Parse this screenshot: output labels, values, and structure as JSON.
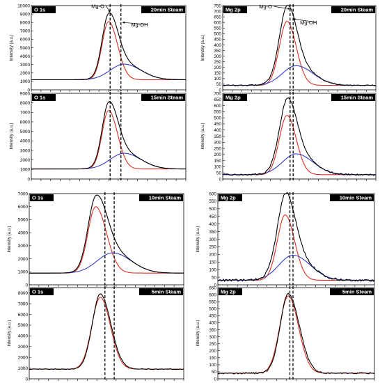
{
  "chart_data": [
    {
      "type": "line",
      "element": "O 1s",
      "condition": "20min Steam",
      "ylabel": "Intensity (a.u.)",
      "ylim": [
        0,
        10000
      ],
      "yticks": [
        0,
        1000,
        2000,
        3000,
        4000,
        5000,
        6000,
        7000,
        8000,
        9000,
        10000
      ],
      "xlim": [
        0,
        100
      ],
      "baseline": 1200,
      "dashed_x": [
        51,
        58
      ],
      "annotations": [
        {
          "label": "Mg-O",
          "target": [
            51,
            9200
          ],
          "text_pos": [
            43,
            9800
          ]
        },
        {
          "label": "Mg-OH",
          "target": [
            59,
            8000
          ],
          "text_pos": [
            70,
            7600
          ]
        }
      ],
      "series": [
        {
          "color": "#d83020",
          "peak_x": 50,
          "peak_y": 8100,
          "w_left": 4.2,
          "w_right": 5.8,
          "noise": 0
        },
        {
          "color": "#3040c8",
          "peak_x": 60,
          "peak_y": 3050,
          "w_left": 9,
          "w_right": 11,
          "noise": 0
        },
        {
          "color": "#000000",
          "sum_of": [
            0,
            1
          ],
          "noise": 0
        }
      ]
    },
    {
      "type": "line",
      "element": "Mg 2p",
      "condition": "20min Steam",
      "ylabel": "Intensity (a.u.)",
      "ylim": [
        0,
        750
      ],
      "yticks": [
        0,
        50,
        100,
        150,
        200,
        250,
        300,
        350,
        400,
        450,
        500,
        550,
        600,
        650,
        700,
        750
      ],
      "xlim": [
        0,
        100
      ],
      "baseline": 40,
      "dashed_x": [
        44,
        46
      ],
      "annotations": [
        {
          "label": "Mg-O",
          "target": [
            44,
            720
          ],
          "text_pos": [
            28,
            730
          ]
        },
        {
          "label": "Mg-OH",
          "target": [
            46,
            630
          ],
          "text_pos": [
            56,
            590
          ]
        }
      ],
      "series": [
        {
          "color": "#d83020",
          "peak_x": 42,
          "peak_y": 610,
          "w_left": 5,
          "w_right": 6,
          "noise": 0
        },
        {
          "color": "#3040c8",
          "peak_x": 48,
          "peak_y": 215,
          "w_left": 9,
          "w_right": 11,
          "noise": 0
        },
        {
          "color": "#000000",
          "sum_of": [
            0,
            1
          ],
          "noise": 5
        }
      ]
    },
    {
      "type": "line",
      "element": "O 1s",
      "condition": "15min Steam",
      "ylabel": "Intensity (a.u.)",
      "ylim": [
        0,
        9000
      ],
      "yticks": [
        0,
        1000,
        2000,
        3000,
        4000,
        5000,
        6000,
        7000,
        8000,
        9000
      ],
      "xlim": [
        0,
        100
      ],
      "baseline": 1050,
      "dashed_x": [
        51,
        58
      ],
      "annotations": [],
      "series": [
        {
          "color": "#d83020",
          "peak_x": 50,
          "peak_y": 7200,
          "w_left": 4.2,
          "w_right": 5.8,
          "noise": 0
        },
        {
          "color": "#3040c8",
          "peak_x": 60,
          "peak_y": 2700,
          "w_left": 9,
          "w_right": 11,
          "noise": 0
        },
        {
          "color": "#000000",
          "sum_of": [
            0,
            1
          ],
          "noise": 0
        }
      ]
    },
    {
      "type": "line",
      "element": "Mg 2p",
      "condition": "15min Steam",
      "ylabel": "Intensity (a.u.)",
      "ylim": [
        0,
        700
      ],
      "yticks": [
        0,
        50,
        100,
        150,
        200,
        250,
        300,
        350,
        400,
        450,
        500,
        550,
        600,
        650,
        700
      ],
      "xlim": [
        0,
        100
      ],
      "baseline": 35,
      "dashed_x": [
        44,
        46
      ],
      "annotations": [],
      "series": [
        {
          "color": "#d83020",
          "peak_x": 42,
          "peak_y": 520,
          "w_left": 5,
          "w_right": 6,
          "noise": 0
        },
        {
          "color": "#3040c8",
          "peak_x": 48,
          "peak_y": 205,
          "w_left": 9,
          "w_right": 11,
          "noise": 0
        },
        {
          "color": "#000000",
          "sum_of": [
            0,
            1
          ],
          "noise": 6
        }
      ]
    },
    {
      "type": "line",
      "element": "O 1s",
      "condition": "10min Steam",
      "ylabel": "Intensity (a.u.)",
      "ylim": [
        0,
        7000
      ],
      "yticks": [
        0,
        1000,
        2000,
        3000,
        4000,
        5000,
        6000,
        7000
      ],
      "xlim": [
        0,
        100
      ],
      "baseline": 900,
      "dashed_x": [
        49,
        55
      ],
      "annotations": [],
      "series": [
        {
          "color": "#d83020",
          "peak_x": 43,
          "peak_y": 6000,
          "w_left": 5,
          "w_right": 7,
          "noise": 0
        },
        {
          "color": "#3040c8",
          "peak_x": 54,
          "peak_y": 2450,
          "w_left": 10,
          "w_right": 12,
          "noise": 0
        },
        {
          "color": "#000000",
          "sum_of": [
            0,
            1
          ],
          "noise": 0
        }
      ]
    },
    {
      "type": "line",
      "element": "Mg 2p",
      "condition": "10min Steam",
      "ylabel": "Intensity (a.u.)",
      "ylim": [
        0,
        600
      ],
      "yticks": [
        0,
        50,
        100,
        150,
        200,
        250,
        300,
        350,
        400,
        450,
        500,
        550,
        600
      ],
      "xlim": [
        0,
        100
      ],
      "baseline": 30,
      "dashed_x": [
        46,
        48
      ],
      "annotations": [],
      "series": [
        {
          "color": "#d83020",
          "peak_x": 43,
          "peak_y": 460,
          "w_left": 5,
          "w_right": 6,
          "noise": 0
        },
        {
          "color": "#3040c8",
          "peak_x": 48,
          "peak_y": 195,
          "w_left": 9,
          "w_right": 11,
          "noise": 0
        },
        {
          "color": "#000000",
          "sum_of": [
            0,
            1
          ],
          "noise": 7
        }
      ]
    },
    {
      "type": "line",
      "element": "O 1s",
      "condition": "5min Steam",
      "ylabel": "Intensity (a.u.)",
      "ylim": [
        0,
        8500
      ],
      "yticks": [
        0,
        1000,
        2000,
        3000,
        4000,
        5000,
        6000,
        7000,
        8000
      ],
      "xlim": [
        0,
        100
      ],
      "baseline": 900,
      "dashed_x": [
        49,
        55
      ],
      "annotations": [],
      "series": [
        {
          "color": "#d83020",
          "peak_x": 46,
          "peak_y": 7600,
          "w_left": 5.5,
          "w_right": 6.5,
          "noise": 0
        },
        {
          "color": "#000000",
          "peak_x": 46,
          "peak_y": 7900,
          "w_left": 5.2,
          "w_right": 6.8,
          "noise": 35
        }
      ]
    },
    {
      "type": "line",
      "element": "Mg 2p",
      "condition": "5min Steam",
      "ylabel": "Intensity (a.u.)",
      "ylim": [
        0,
        650
      ],
      "yticks": [
        0,
        50,
        100,
        150,
        200,
        250,
        300,
        350,
        400,
        450,
        500,
        550,
        600,
        650
      ],
      "xlim": [
        0,
        100
      ],
      "baseline": 40,
      "dashed_x": [
        46,
        48
      ],
      "annotations": [],
      "series": [
        {
          "color": "#d83020",
          "peak_x": 45,
          "peak_y": 590,
          "w_left": 5.5,
          "w_right": 6.5,
          "noise": 0
        },
        {
          "color": "#000000",
          "peak_x": 45,
          "peak_y": 605,
          "w_left": 5.2,
          "w_right": 7,
          "noise": 5
        }
      ]
    }
  ]
}
